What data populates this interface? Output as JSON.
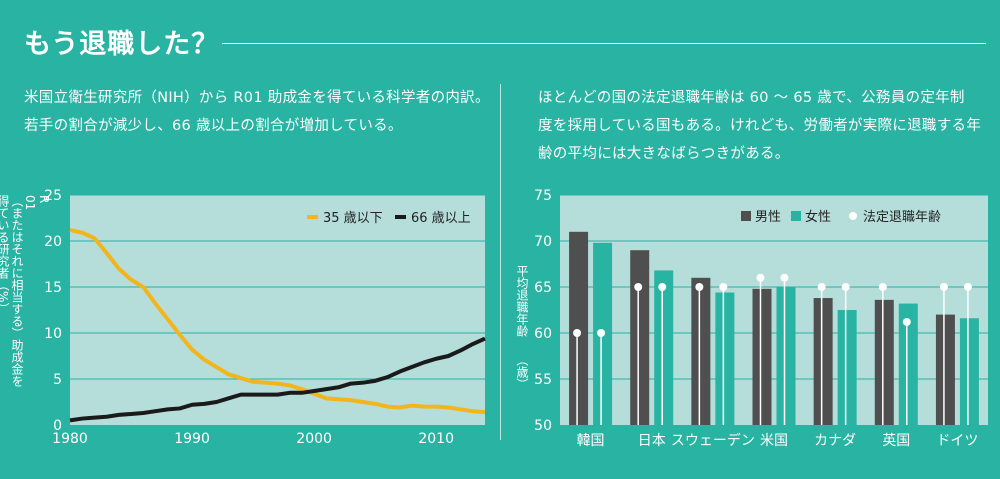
{
  "header": {
    "title": "もう退職した？"
  },
  "left_description": [
    "米国立衛生研究所（NIH）から R01 助成金を得ている科学者の内訳。",
    "若手の割合が減少し、66 歳以上の割合が増加している。"
  ],
  "right_description": [
    "ほとんどの国の法定退職年齢は 60 ～ 65 歳で、公務員の定年制",
    "度を採用している国もある。けれども、労働者が実際に退職する年",
    "齢の平均には大きなばらつきがある。"
  ],
  "colors": {
    "background": "#29b3a3",
    "plot_bg": "#b5dedb",
    "gridline": "#29b3a3",
    "young": "#f2b51b",
    "old": "#1a1a1a",
    "male": "#4f4f4f",
    "female": "#29b3a3",
    "statutory": "#ffffff"
  },
  "chart_data": [
    {
      "type": "line",
      "ylabel_lines": [
        "R",
        "01",
        "（またはそれに相当する）助成金を",
        "得ている研究者（%）"
      ],
      "ylim": [
        0,
        25
      ],
      "yticks": [
        "0",
        "5",
        "10",
        "15",
        "20",
        "25"
      ],
      "xlim": [
        1980,
        2014
      ],
      "xticks": [
        "1980",
        "1990",
        "2000",
        "2010"
      ],
      "grid": true,
      "legend_position": "top-right",
      "series": [
        {
          "name": "35 歳以下",
          "x": [
            1980,
            1981,
            1982,
            1983,
            1984,
            1985,
            1986,
            1987,
            1988,
            1989,
            1990,
            1991,
            1992,
            1993,
            1994,
            1995,
            1996,
            1997,
            1998,
            1999,
            2000,
            2001,
            2002,
            2003,
            2004,
            2005,
            2006,
            2007,
            2008,
            2009,
            2010,
            2011,
            2012,
            2013,
            2014
          ],
          "y": [
            21.2,
            20.9,
            20.3,
            18.7,
            17.0,
            15.8,
            15.0,
            13.2,
            11.5,
            9.8,
            8.2,
            7.1,
            6.3,
            5.5,
            5.1,
            4.7,
            4.6,
            4.5,
            4.3,
            3.9,
            3.4,
            2.9,
            2.8,
            2.7,
            2.5,
            2.3,
            2.0,
            1.9,
            2.1,
            2.0,
            2.0,
            1.9,
            1.7,
            1.5,
            1.4
          ]
        },
        {
          "name": "66 歳以上",
          "x": [
            1980,
            1981,
            1982,
            1983,
            1984,
            1985,
            1986,
            1987,
            1988,
            1989,
            1990,
            1991,
            1992,
            1993,
            1994,
            1995,
            1996,
            1997,
            1998,
            1999,
            2000,
            2001,
            2002,
            2003,
            2004,
            2005,
            2006,
            2007,
            2008,
            2009,
            2010,
            2011,
            2012,
            2013,
            2014
          ],
          "y": [
            0.5,
            0.7,
            0.8,
            0.9,
            1.1,
            1.2,
            1.3,
            1.5,
            1.7,
            1.8,
            2.2,
            2.3,
            2.5,
            2.9,
            3.3,
            3.3,
            3.3,
            3.3,
            3.5,
            3.5,
            3.7,
            3.9,
            4.1,
            4.5,
            4.6,
            4.8,
            5.2,
            5.8,
            6.3,
            6.8,
            7.2,
            7.5,
            8.1,
            8.8,
            9.4
          ]
        }
      ]
    },
    {
      "type": "bar",
      "ylabel_lines": [
        "平均退職年齢",
        "（歳）"
      ],
      "ylim": [
        50,
        75
      ],
      "yticks": [
        "50",
        "55",
        "60",
        "65",
        "70",
        "75"
      ],
      "grid": true,
      "legend_position": "top",
      "categories": [
        "韓国",
        "日本",
        "スウェーデン",
        "米国",
        "カナダ",
        "英国",
        "ドイツ"
      ],
      "series": [
        {
          "name": "男性",
          "values": [
            71.0,
            69.0,
            66.0,
            64.8,
            63.8,
            63.6,
            62.0
          ]
        },
        {
          "name": "女性",
          "values": [
            69.8,
            66.8,
            64.4,
            65.0,
            62.5,
            63.2,
            61.6
          ]
        }
      ],
      "statutory": {
        "name": "法定退職年齢",
        "male": [
          60,
          65,
          65,
          66,
          65,
          65,
          65
        ],
        "female": [
          60,
          65,
          65,
          66,
          65,
          61.2,
          65
        ]
      }
    }
  ]
}
